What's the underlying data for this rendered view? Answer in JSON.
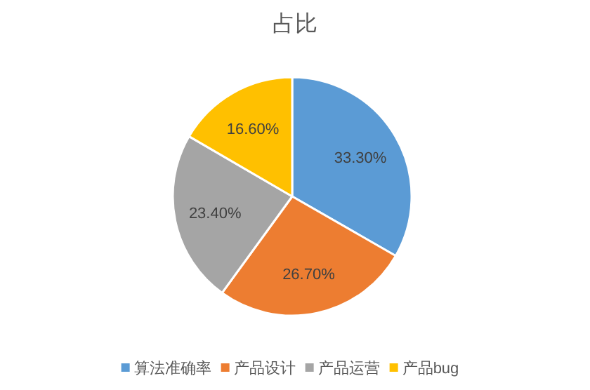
{
  "chart_data": {
    "type": "pie",
    "title": "占比",
    "categories": [
      "算法准确率",
      "产品设计",
      "产品运营",
      "产品bug"
    ],
    "values": [
      33.3,
      26.7,
      23.4,
      16.6
    ],
    "value_labels": [
      "33.30%",
      "26.70%",
      "23.40%",
      "16.60%"
    ],
    "colors": [
      "#5b9bd5",
      "#ed7d31",
      "#a5a5a5",
      "#ffc000"
    ],
    "legend": "bottom"
  }
}
